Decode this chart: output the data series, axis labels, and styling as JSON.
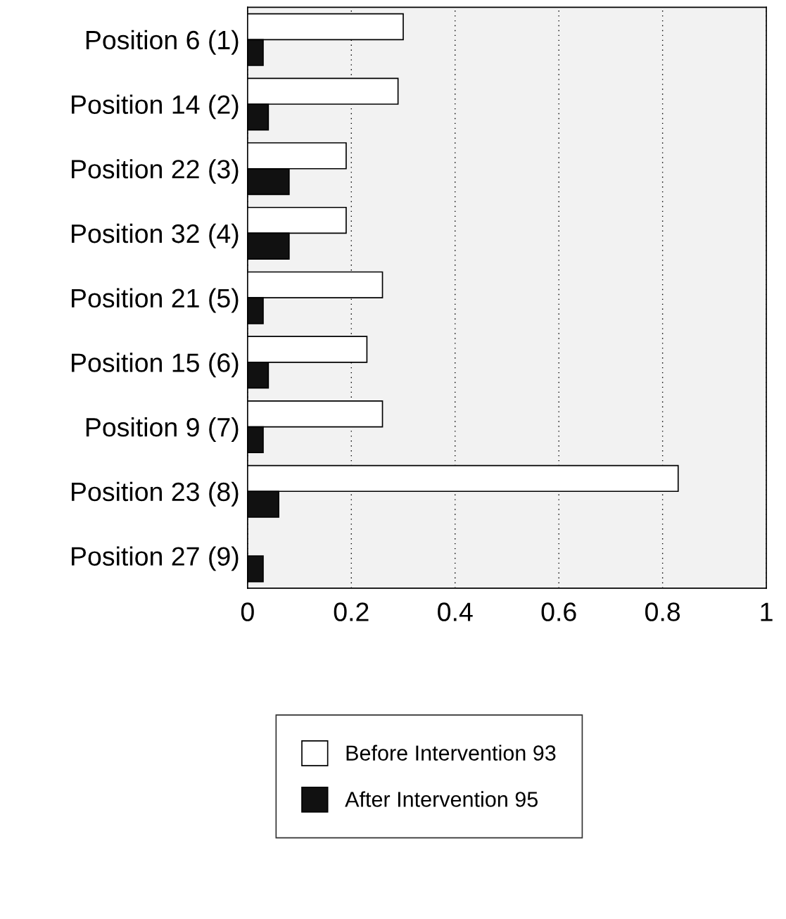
{
  "chart_data": {
    "type": "bar",
    "orientation": "horizontal",
    "categories": [
      "Position 6 (1)",
      "Position 14 (2)",
      "Position 22 (3)",
      "Position 32 (4)",
      "Position 21 (5)",
      "Position 15 (6)",
      "Position 9 (7)",
      "Position 23 (8)",
      "Position 27 (9)"
    ],
    "series": [
      {
        "name": "Before Intervention 93",
        "color": "#ffffff",
        "values": [
          0.3,
          0.29,
          0.19,
          0.19,
          0.26,
          0.23,
          0.26,
          0.83,
          null
        ]
      },
      {
        "name": "After Intervention 95",
        "color": "#111111",
        "values": [
          0.03,
          0.04,
          0.08,
          0.08,
          0.03,
          0.04,
          0.03,
          0.06,
          0.03
        ]
      }
    ],
    "xlim": [
      0,
      1
    ],
    "xticks": [
      0,
      0.2,
      0.4,
      0.6,
      0.8,
      1
    ],
    "grid": "x",
    "legend": "bottom"
  }
}
